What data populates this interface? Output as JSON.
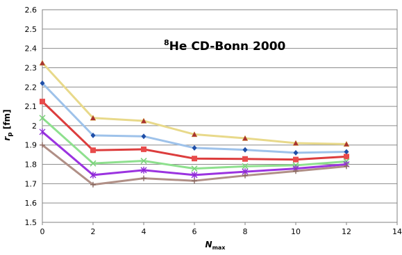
{
  "chart_data": {
    "type": "line",
    "title_super": "8",
    "title_rest": "He  CD-Bonn 2000",
    "xlabel_main": "N",
    "xlabel_sub": "max",
    "ylabel_main": "r",
    "ylabel_sub": "p",
    "ylabel_unit": " [fm]",
    "xlim": [
      0,
      14
    ],
    "ylim": [
      1.5,
      2.6
    ],
    "x_ticks": [
      "0",
      "2",
      "4",
      "6",
      "8",
      "10",
      "12",
      "14"
    ],
    "y_ticks": [
      "1.5",
      "1.6",
      "1.7",
      "1.8",
      "1.9",
      "2",
      "2.1",
      "2.2",
      "2.3",
      "2.4",
      "2.5",
      "2.6"
    ],
    "grid": "horizontal",
    "x": [
      0,
      2,
      4,
      6,
      8,
      10,
      12
    ],
    "series": [
      {
        "values": [
          2.325,
          2.04,
          2.025,
          1.955,
          1.935,
          1.91,
          1.905
        ],
        "color": "#e8d98a",
        "marker_color": "#a83232",
        "marker": "triangle"
      },
      {
        "values": [
          2.22,
          1.95,
          1.945,
          1.885,
          1.875,
          1.86,
          1.865
        ],
        "color": "#9ec2ea",
        "marker_color": "#1f4fa8",
        "marker": "diamond"
      },
      {
        "values": [
          2.125,
          1.873,
          1.878,
          1.83,
          1.828,
          1.825,
          1.84
        ],
        "color": "#dc3d3d",
        "marker_color": "#e84b4b",
        "marker": "square"
      },
      {
        "values": [
          2.04,
          1.805,
          1.818,
          1.778,
          1.79,
          1.795,
          1.815
        ],
        "color": "#8ee08e",
        "marker_color": "#7ed37e",
        "marker": "x"
      },
      {
        "values": [
          1.968,
          1.745,
          1.77,
          1.745,
          1.762,
          1.778,
          1.8
        ],
        "color": "#9b33e0",
        "marker_color": "#8d2ad6",
        "marker": "star"
      },
      {
        "values": [
          1.9,
          1.695,
          1.728,
          1.715,
          1.742,
          1.765,
          1.79
        ],
        "color": "#b08f86",
        "marker_color": "#8a6a62",
        "marker": "plus"
      }
    ]
  }
}
